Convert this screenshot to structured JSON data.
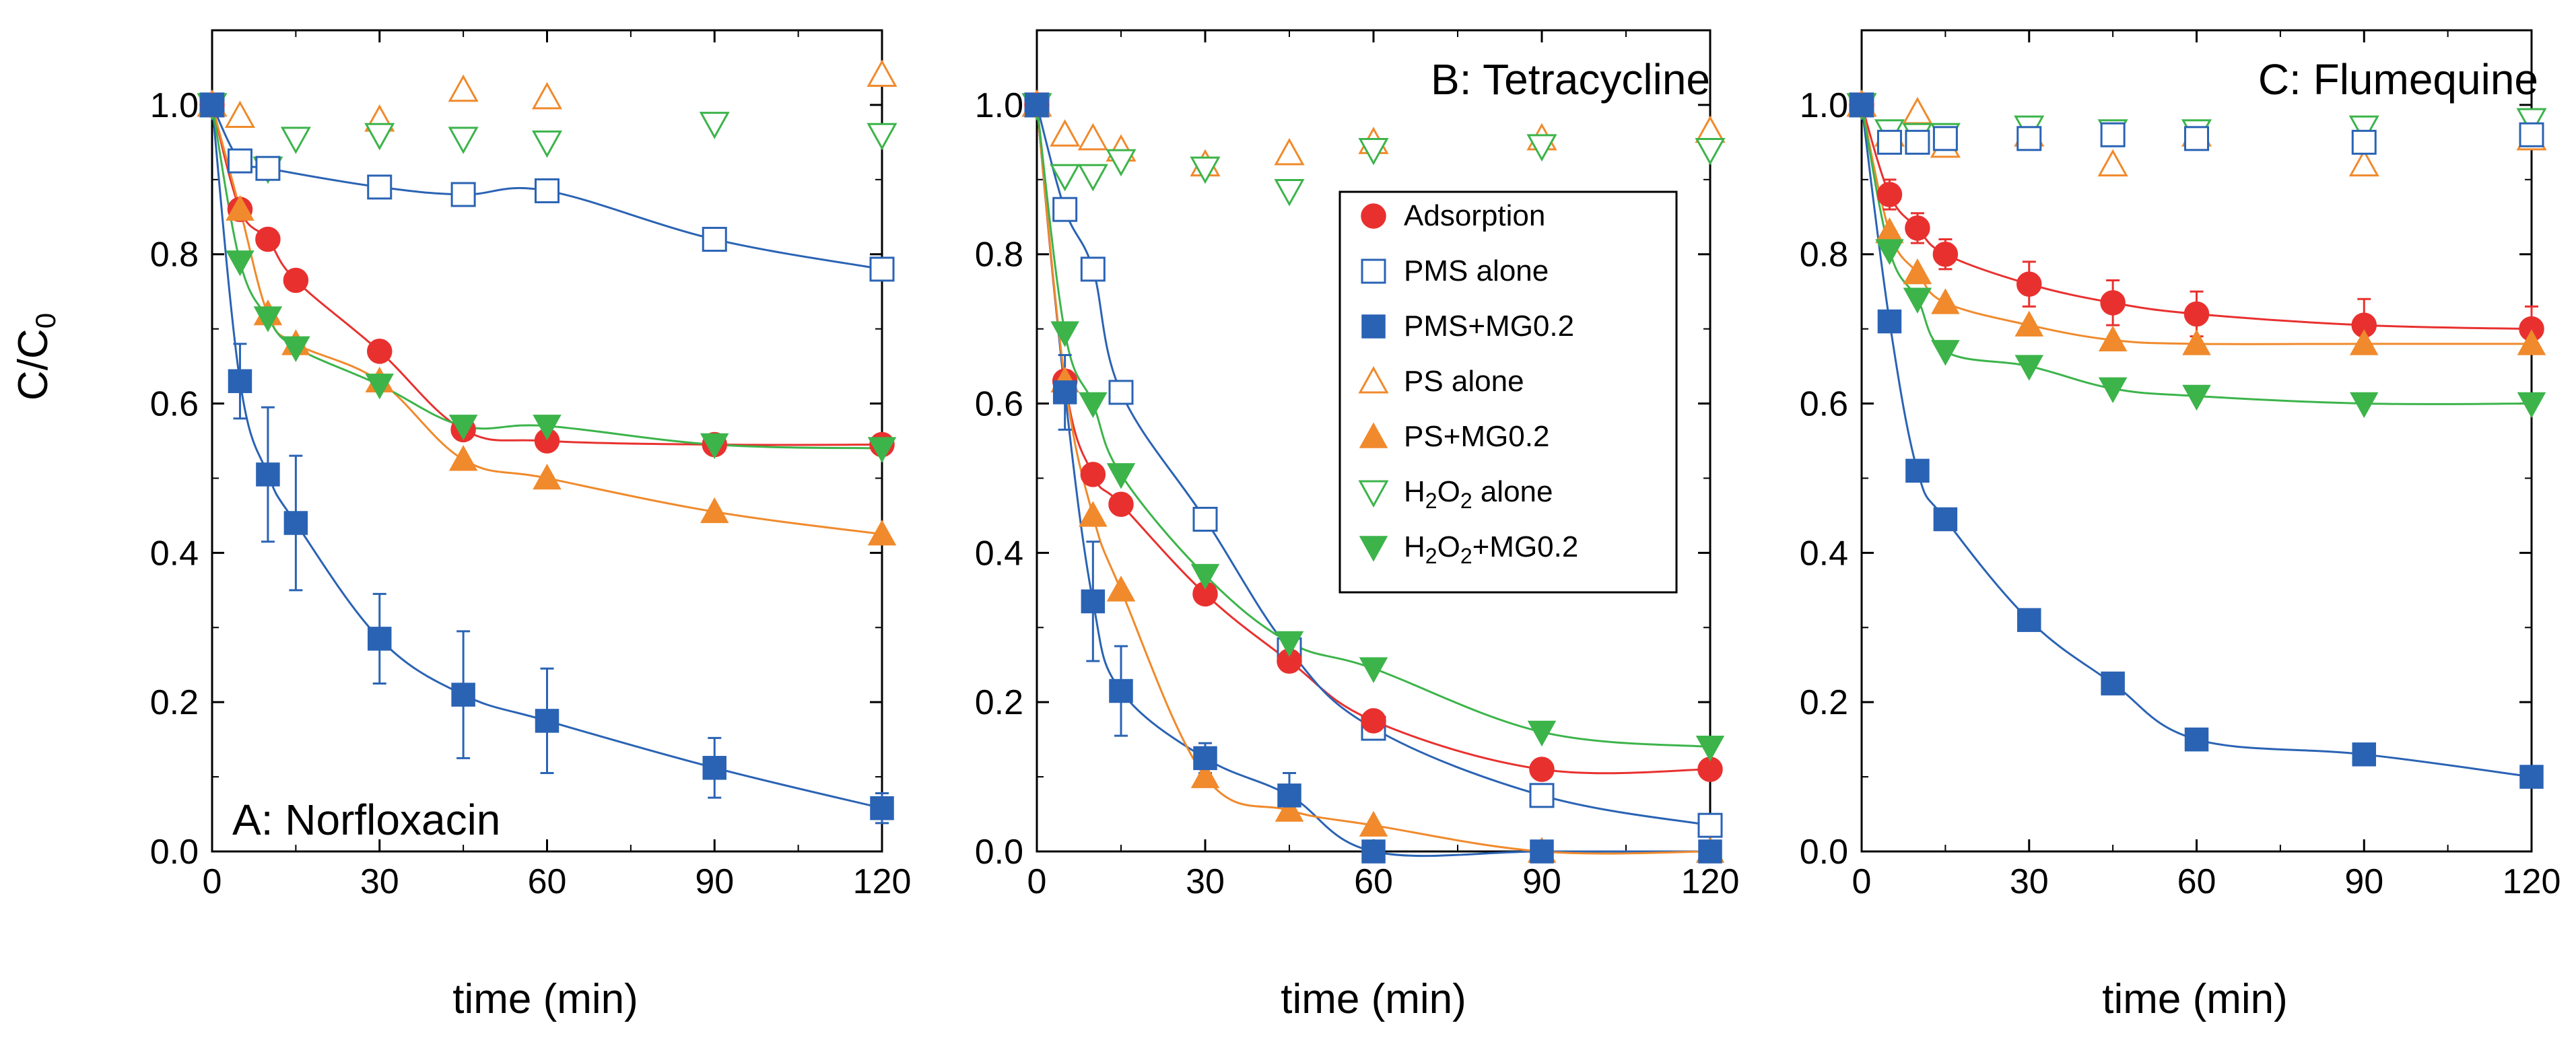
{
  "figure": {
    "ylabel": "C/C",
    "ylabel_subscript": "0",
    "xlabel": "time (min)"
  },
  "legend": [
    {
      "key": "adsorption",
      "label": "Adsorption"
    },
    {
      "key": "pms_alone",
      "label": "PMS alone"
    },
    {
      "key": "pms_mg",
      "label": "PMS+MG0.2"
    },
    {
      "key": "ps_alone",
      "label": "PS alone"
    },
    {
      "key": "ps_mg",
      "label": "PS+MG0.2"
    },
    {
      "key": "h2o2_alone",
      "label": "H",
      "sub": "2",
      "mid": "O",
      "sub2": "2",
      "tail": " alone"
    },
    {
      "key": "h2o2_mg",
      "label": "H",
      "sub": "2",
      "mid": "O",
      "sub2": "2",
      "tail": "+MG0.2"
    }
  ],
  "series_styles": {
    "adsorption": {
      "color": "#e8312f",
      "marker": "circle",
      "filled": true
    },
    "pms_alone": {
      "color": "#2a63b4",
      "marker": "square",
      "filled": false
    },
    "pms_mg": {
      "color": "#2a63b4",
      "marker": "square",
      "filled": true
    },
    "ps_alone": {
      "color": "#f08a2c",
      "marker": "triangle-up",
      "filled": false
    },
    "ps_mg": {
      "color": "#f08a2c",
      "marker": "triangle-up",
      "filled": true
    },
    "h2o2_alone": {
      "color": "#3cb44a",
      "marker": "triangle-down",
      "filled": false
    },
    "h2o2_mg": {
      "color": "#3cb44a",
      "marker": "triangle-down",
      "filled": true
    }
  },
  "chart_data": [
    {
      "type": "scatter",
      "title": "A: Norfloxacin",
      "xlabel": "time (min)",
      "ylabel": "C/C0",
      "xlim": [
        0,
        120
      ],
      "ylim": [
        0,
        1.1
      ],
      "xticks": [
        0,
        30,
        60,
        90,
        120
      ],
      "yticks": [
        0.0,
        0.2,
        0.4,
        0.6,
        0.8,
        1.0
      ],
      "series": [
        {
          "key": "adsorption",
          "name": "Adsorption",
          "x": [
            0,
            5,
            10,
            15,
            30,
            45,
            60,
            90,
            120
          ],
          "y": [
            1.0,
            0.86,
            0.82,
            0.765,
            0.67,
            0.565,
            0.55,
            0.545,
            0.545
          ],
          "curve": true
        },
        {
          "key": "pms_alone",
          "name": "PMS alone",
          "x": [
            0,
            5,
            10,
            30,
            45,
            60,
            90,
            120
          ],
          "y": [
            1.0,
            0.925,
            0.915,
            0.89,
            0.88,
            0.885,
            0.82,
            0.78
          ],
          "curve": true
        },
        {
          "key": "pms_mg",
          "name": "PMS+MG0.2",
          "x": [
            0,
            5,
            10,
            15,
            30,
            45,
            60,
            90,
            120
          ],
          "y": [
            1.0,
            0.63,
            0.505,
            0.44,
            0.285,
            0.21,
            0.175,
            0.112,
            0.058
          ],
          "err": [
            0,
            0.05,
            0.09,
            0.09,
            0.06,
            0.085,
            0.07,
            0.04,
            0.02
          ],
          "curve": true
        },
        {
          "key": "ps_alone",
          "name": "PS alone",
          "x": [
            0,
            5,
            30,
            45,
            60,
            120
          ],
          "y": [
            1.0,
            0.985,
            0.98,
            1.02,
            1.01,
            1.04
          ],
          "curve": false
        },
        {
          "key": "ps_mg",
          "name": "PS+MG0.2",
          "x": [
            0,
            5,
            10,
            15,
            30,
            45,
            60,
            90,
            120
          ],
          "y": [
            1.0,
            0.86,
            0.72,
            0.68,
            0.63,
            0.525,
            0.5,
            0.455,
            0.425
          ],
          "curve": true
        },
        {
          "key": "h2o2_alone",
          "name": "H2O2 alone",
          "x": [
            0,
            10,
            15,
            30,
            45,
            60,
            90,
            120
          ],
          "y": [
            1.0,
            0.915,
            0.955,
            0.96,
            0.955,
            0.95,
            0.975,
            0.96
          ],
          "curve": false
        },
        {
          "key": "h2o2_mg",
          "name": "H2O2+MG0.2",
          "x": [
            0,
            5,
            10,
            15,
            30,
            45,
            60,
            90,
            120
          ],
          "y": [
            1.0,
            0.79,
            0.715,
            0.675,
            0.625,
            0.57,
            0.57,
            0.545,
            0.54
          ],
          "curve": true
        }
      ]
    },
    {
      "type": "scatter",
      "title": "B: Tetracycline",
      "xlabel": "time (min)",
      "ylabel": "C/C0",
      "xlim": [
        0,
        120
      ],
      "ylim": [
        0,
        1.1
      ],
      "xticks": [
        0,
        30,
        60,
        90,
        120
      ],
      "yticks": [
        0.0,
        0.2,
        0.4,
        0.6,
        0.8,
        1.0
      ],
      "series": [
        {
          "key": "adsorption",
          "name": "Adsorption",
          "x": [
            0,
            5,
            10,
            15,
            30,
            45,
            60,
            90,
            120
          ],
          "y": [
            1.0,
            0.63,
            0.505,
            0.465,
            0.345,
            0.255,
            0.175,
            0.11,
            0.11
          ],
          "curve": true
        },
        {
          "key": "pms_alone",
          "name": "PMS alone",
          "x": [
            0,
            5,
            10,
            15,
            30,
            45,
            60,
            90,
            120
          ],
          "y": [
            1.0,
            0.86,
            0.78,
            0.615,
            0.445,
            0.27,
            0.165,
            0.075,
            0.035
          ],
          "curve": true
        },
        {
          "key": "pms_mg",
          "name": "PMS+MG0.2",
          "x": [
            0,
            5,
            10,
            15,
            30,
            45,
            60,
            90,
            120
          ],
          "y": [
            1.0,
            0.615,
            0.335,
            0.215,
            0.125,
            0.075,
            0.0,
            0.0,
            0.0
          ],
          "err": [
            0,
            0.05,
            0.08,
            0.06,
            0.02,
            0.03,
            0,
            0,
            0
          ],
          "curve": true
        },
        {
          "key": "ps_alone",
          "name": "PS alone",
          "x": [
            0,
            5,
            10,
            15,
            30,
            45,
            60,
            90,
            120
          ],
          "y": [
            1.0,
            0.96,
            0.955,
            0.94,
            0.92,
            0.935,
            0.95,
            0.955,
            0.965
          ],
          "curve": false
        },
        {
          "key": "ps_mg",
          "name": "PS+MG0.2",
          "x": [
            0,
            5,
            10,
            15,
            30,
            45,
            60,
            90,
            120
          ],
          "y": [
            1.0,
            0.63,
            0.45,
            0.35,
            0.1,
            0.055,
            0.035,
            0.0,
            0.0
          ],
          "curve": true
        },
        {
          "key": "h2o2_alone",
          "name": "H2O2 alone",
          "x": [
            0,
            5,
            10,
            15,
            30,
            45,
            60,
            90,
            120
          ],
          "y": [
            1.0,
            0.905,
            0.905,
            0.925,
            0.915,
            0.885,
            0.94,
            0.945,
            0.94
          ],
          "curve": false
        },
        {
          "key": "h2o2_mg",
          "name": "H2O2+MG0.2",
          "x": [
            0,
            5,
            10,
            15,
            30,
            45,
            60,
            90,
            120
          ],
          "y": [
            1.0,
            0.695,
            0.6,
            0.505,
            0.37,
            0.28,
            0.245,
            0.16,
            0.14
          ],
          "curve": true
        }
      ]
    },
    {
      "type": "scatter",
      "title": "C: Flumequine",
      "xlabel": "time (min)",
      "ylabel": "C/C0",
      "xlim": [
        0,
        120
      ],
      "ylim": [
        0,
        1.1
      ],
      "xticks": [
        0,
        30,
        60,
        90,
        120
      ],
      "yticks": [
        0.0,
        0.2,
        0.4,
        0.6,
        0.8,
        1.0
      ],
      "series": [
        {
          "key": "adsorption",
          "name": "Adsorption",
          "x": [
            0,
            5,
            10,
            15,
            30,
            45,
            60,
            90,
            120
          ],
          "y": [
            1.0,
            0.88,
            0.835,
            0.8,
            0.76,
            0.735,
            0.72,
            0.705,
            0.7
          ],
          "err": [
            0,
            0.02,
            0.02,
            0.02,
            0.03,
            0.03,
            0.03,
            0.035,
            0.03
          ],
          "curve": true
        },
        {
          "key": "pms_alone",
          "name": "PMS alone",
          "x": [
            0,
            5,
            10,
            15,
            30,
            45,
            60,
            90,
            120
          ],
          "y": [
            1.0,
            0.95,
            0.95,
            0.955,
            0.955,
            0.96,
            0.955,
            0.95,
            0.96
          ],
          "curve": false
        },
        {
          "key": "pms_mg",
          "name": "PMS+MG0.2",
          "x": [
            0,
            5,
            10,
            15,
            30,
            45,
            60,
            90,
            120
          ],
          "y": [
            1.0,
            0.71,
            0.51,
            0.445,
            0.31,
            0.225,
            0.15,
            0.13,
            0.1
          ],
          "curve": true
        },
        {
          "key": "ps_alone",
          "name": "PS alone",
          "x": [
            0,
            5,
            10,
            15,
            30,
            45,
            60,
            90,
            120
          ],
          "y": [
            1.0,
            0.96,
            0.99,
            0.945,
            0.96,
            0.92,
            0.96,
            0.92,
            0.955
          ],
          "curve": false
        },
        {
          "key": "ps_mg",
          "name": "PS+MG0.2",
          "x": [
            0,
            5,
            10,
            15,
            30,
            45,
            60,
            90,
            120
          ],
          "y": [
            1.0,
            0.83,
            0.775,
            0.735,
            0.705,
            0.685,
            0.68,
            0.68,
            0.68
          ],
          "curve": true
        },
        {
          "key": "h2o2_alone",
          "name": "H2O2 alone",
          "x": [
            0,
            5,
            10,
            15,
            30,
            45,
            60,
            90,
            120
          ],
          "y": [
            1.0,
            0.965,
            0.96,
            0.96,
            0.97,
            0.965,
            0.965,
            0.97,
            0.98
          ],
          "curve": false
        },
        {
          "key": "h2o2_mg",
          "name": "H2O2+MG0.2",
          "x": [
            0,
            5,
            10,
            15,
            30,
            45,
            60,
            90,
            120
          ],
          "y": [
            1.0,
            0.805,
            0.74,
            0.67,
            0.65,
            0.62,
            0.61,
            0.6,
            0.6
          ],
          "curve": true
        }
      ]
    }
  ]
}
